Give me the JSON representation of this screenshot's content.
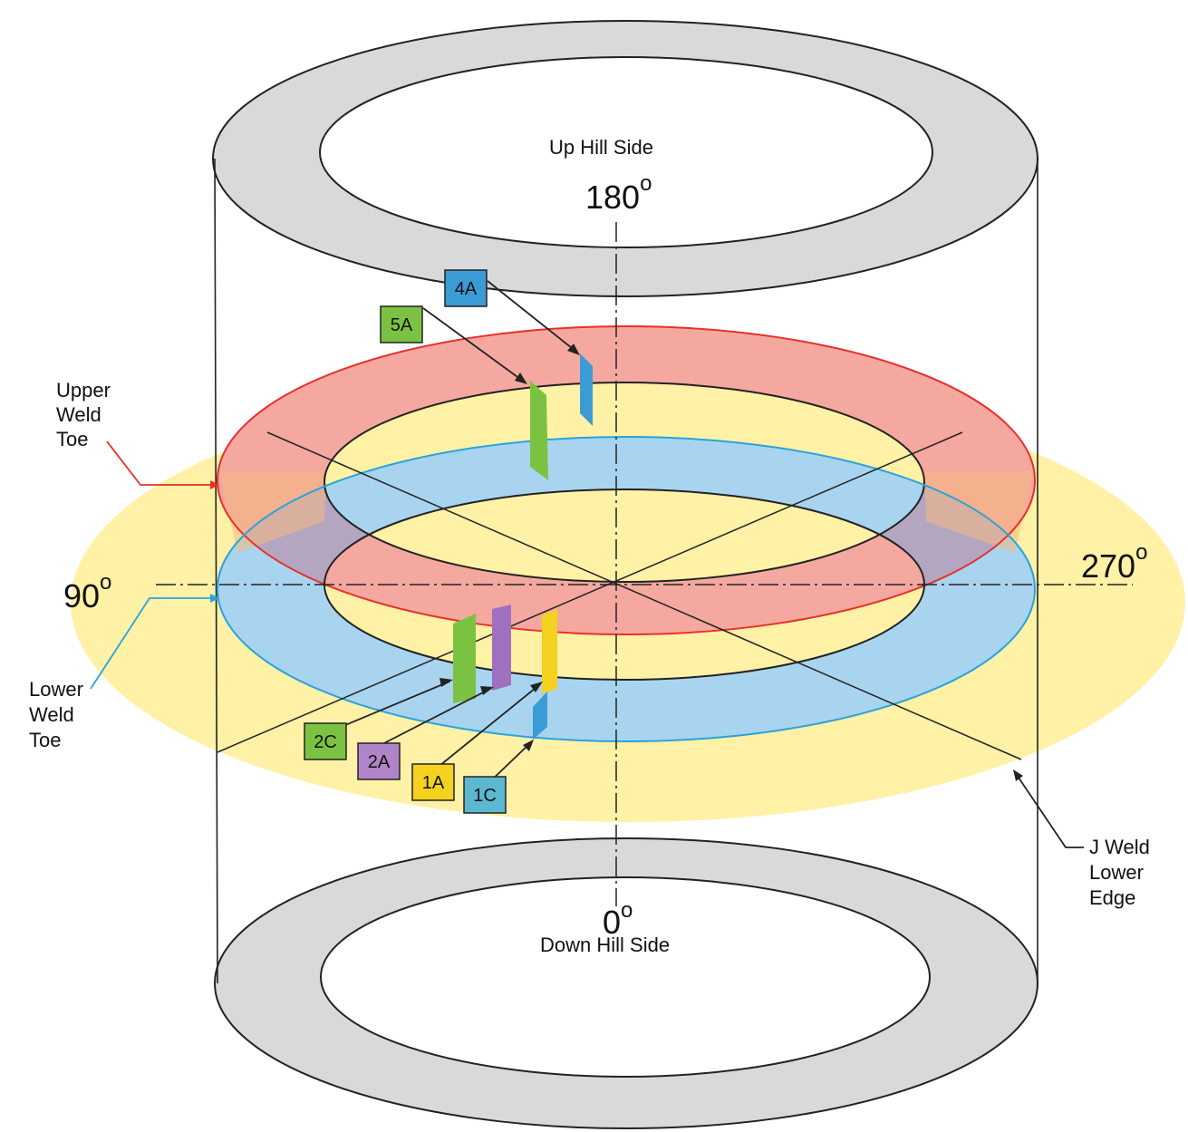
{
  "labels": {
    "up_hill_side": "Up Hill Side",
    "down_hill_side": "Down Hill Side",
    "upper_weld_toe": [
      "Upper",
      "Weld",
      "Toe"
    ],
    "lower_weld_toe": [
      "Lower",
      "Weld",
      "Toe"
    ],
    "j_weld_lower_edge": [
      "J Weld",
      "Lower",
      "Edge"
    ]
  },
  "angles": {
    "a180": "180",
    "a90": "90",
    "a270": "270",
    "a0": "0",
    "degree_mark": "o"
  },
  "indications": [
    {
      "id": "4A",
      "color": "#3b9bd4"
    },
    {
      "id": "5A",
      "color": "#7cc242"
    },
    {
      "id": "2C",
      "color": "#7cc242"
    },
    {
      "id": "2A",
      "color": "#a070c0"
    },
    {
      "id": "1A",
      "color": "#f5d21f"
    },
    {
      "id": "1C",
      "color": "#5bb8d0"
    }
  ],
  "colors": {
    "pipe_ring": "#d9d9d9",
    "j_weld_zone": "#fff1a6",
    "upper_weld_toe": "#f4a8a0",
    "upper_weld_toe_line": "#e8302a",
    "lower_weld_toe": "#a9d4ef",
    "lower_weld_toe_line": "#2aa3dc",
    "overlap": "#b4a6c0"
  }
}
